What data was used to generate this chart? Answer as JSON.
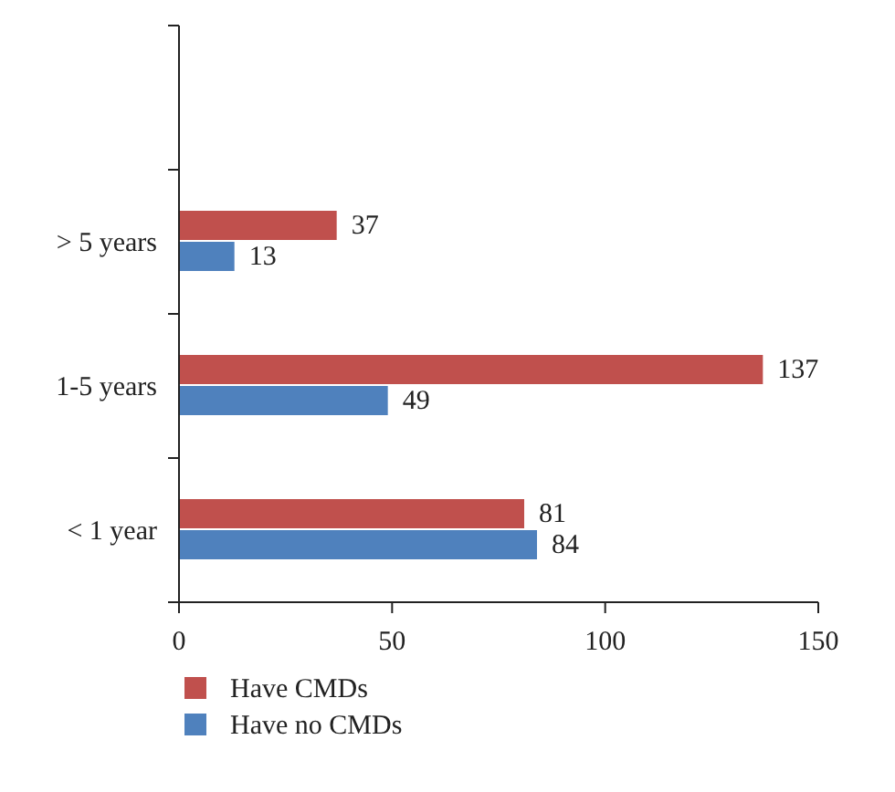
{
  "chart_data": {
    "type": "bar",
    "orientation": "horizontal",
    "categories": [
      null,
      "> 5 years",
      "1-5 years",
      "< 1 year"
    ],
    "series": [
      {
        "name": "Have CMDs",
        "color": "#c0504d",
        "values": [
          null,
          37,
          137,
          81
        ]
      },
      {
        "name": "Have no CMDs",
        "color": "#4f81bd",
        "values": [
          null,
          13,
          49,
          84
        ]
      }
    ],
    "xlim": [
      0,
      150
    ],
    "xticks": [
      0,
      50,
      100,
      150
    ],
    "data_labels": true,
    "legend": "bottom",
    "grid": false
  }
}
